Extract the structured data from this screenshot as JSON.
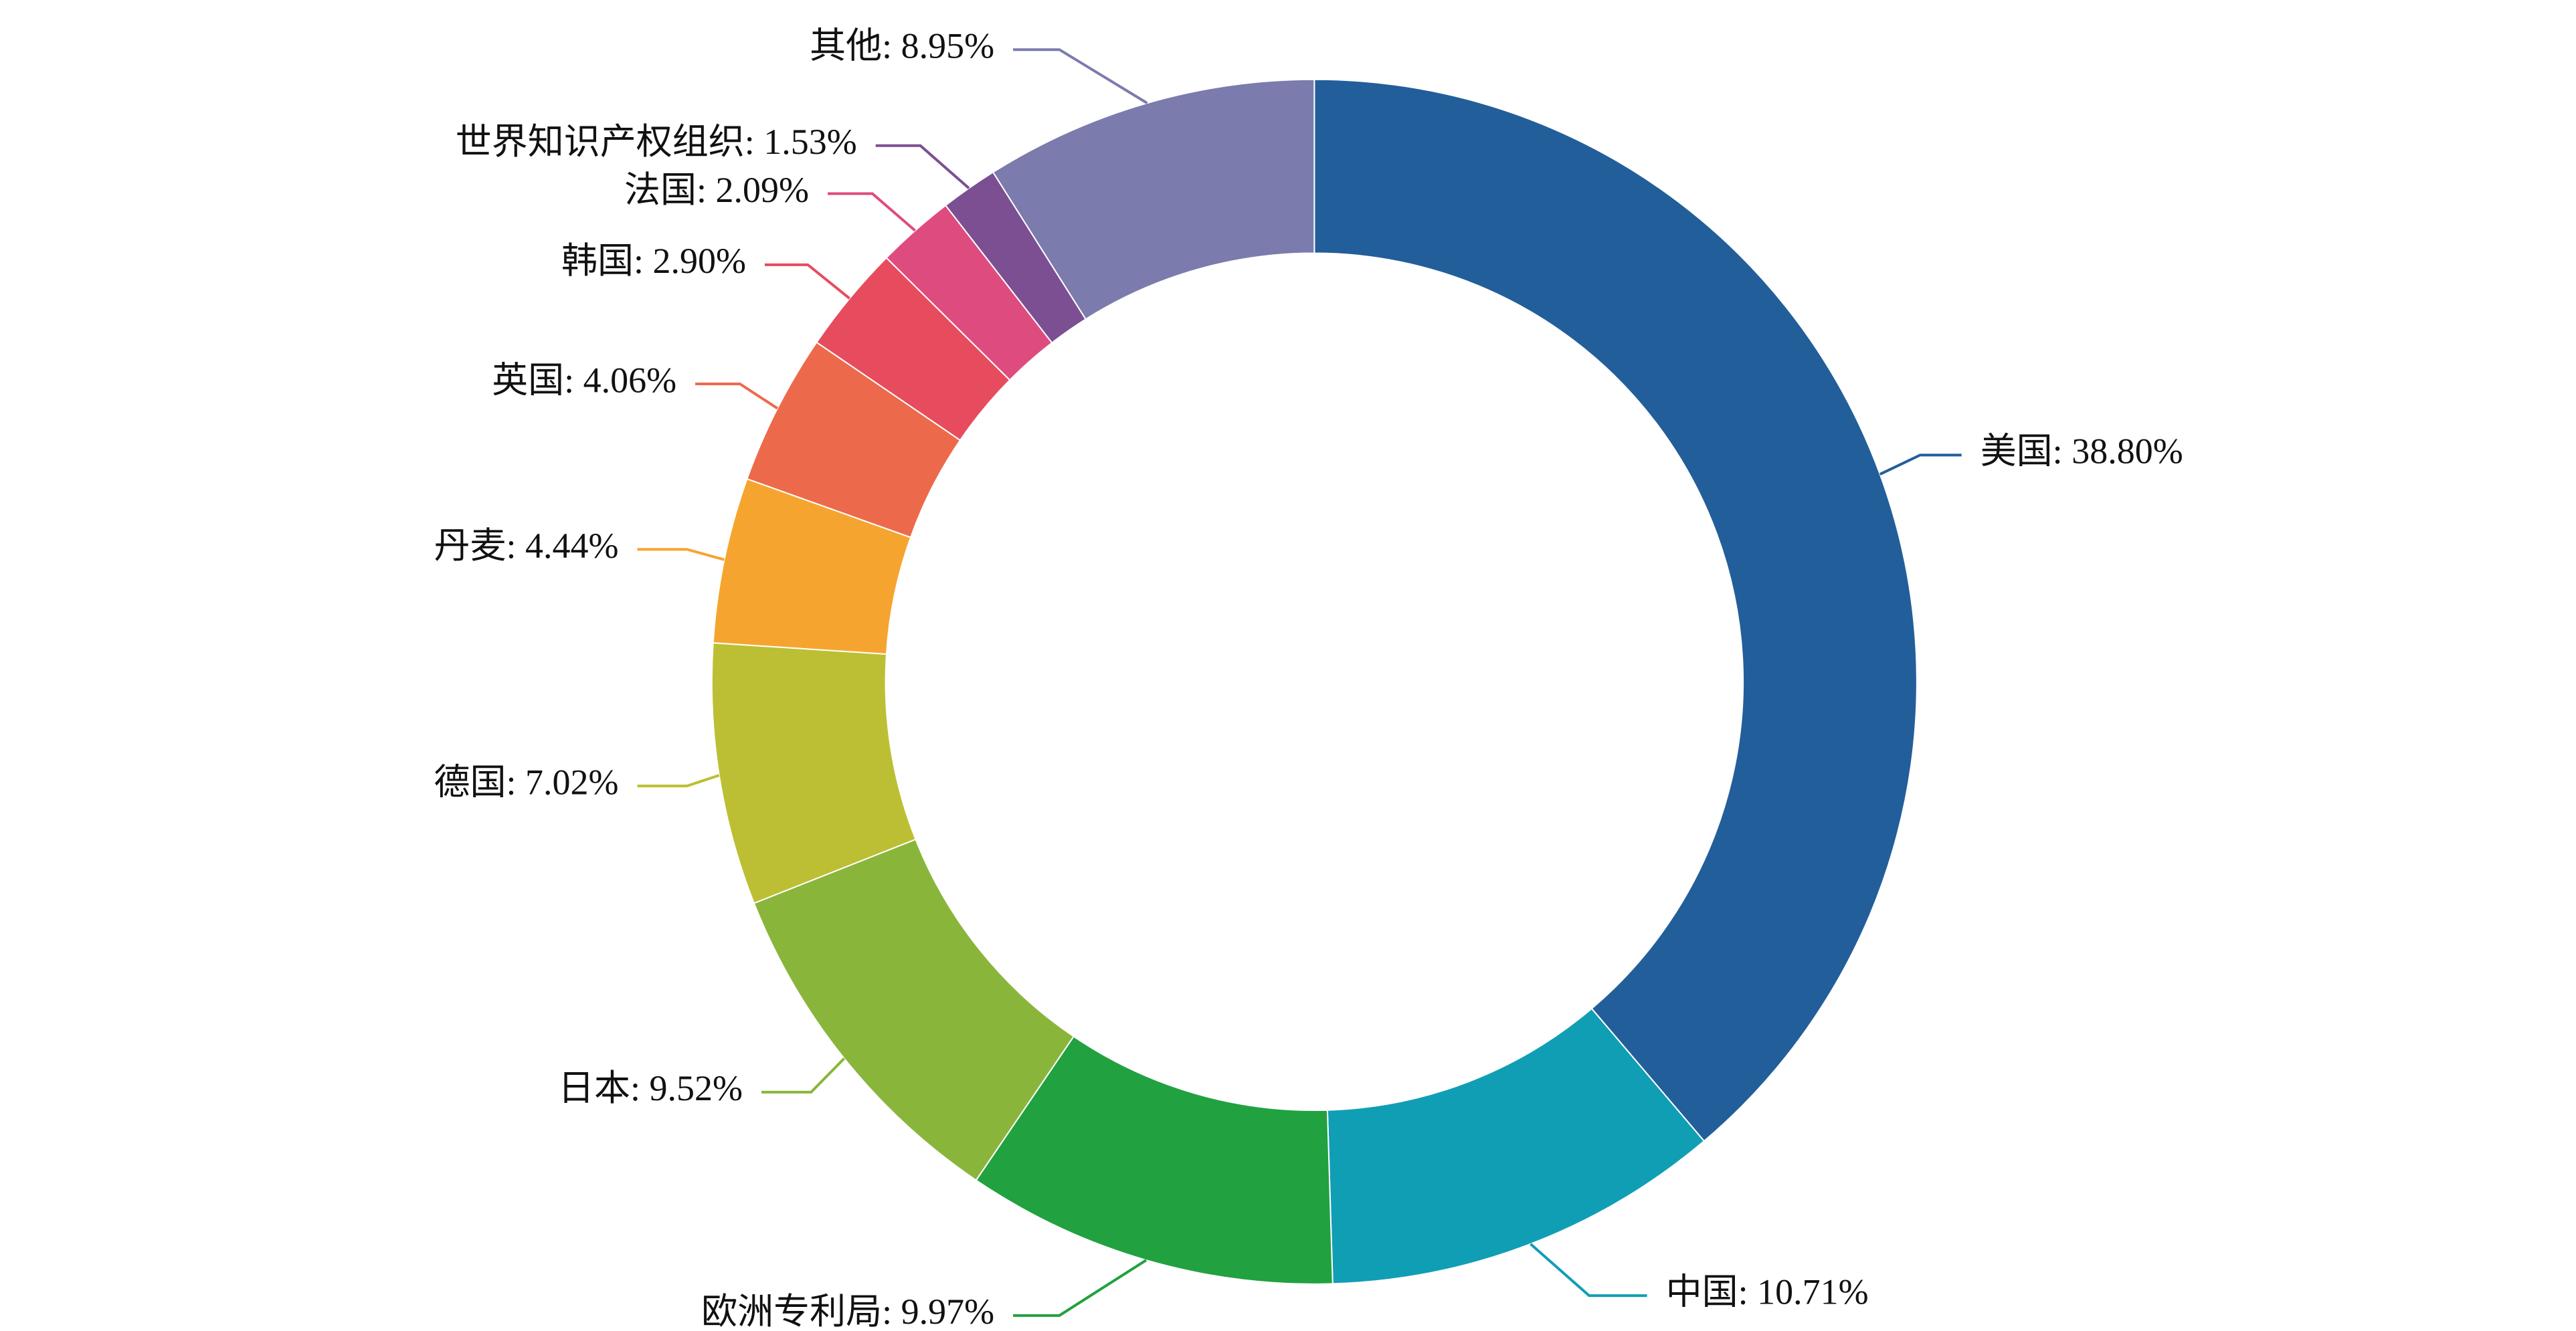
{
  "chart_data": {
    "type": "donut",
    "value_labels": [
      "美国: 38.80%",
      "中国: 10.71%",
      "欧洲专利局: 9.97%",
      "日本: 9.52%",
      "德国: 7.02%",
      "丹麦: 4.44%",
      "英国: 4.06%",
      "韩国: 2.90%",
      "法国: 2.09%",
      "世界知识产权组织: 1.53%",
      "其他: 8.95%"
    ],
    "values": [
      38.8,
      10.71,
      9.97,
      9.52,
      7.02,
      4.44,
      4.06,
      2.9,
      2.09,
      1.53,
      8.95
    ],
    "colors": [
      "#225e9a",
      "#109eb5",
      "#21a140",
      "#8ab53b",
      "#bcbf33",
      "#f5a52f",
      "#ec6a4b",
      "#e74c5e",
      "#de4c7f",
      "#7b4f91",
      "#7b7bad"
    ]
  }
}
